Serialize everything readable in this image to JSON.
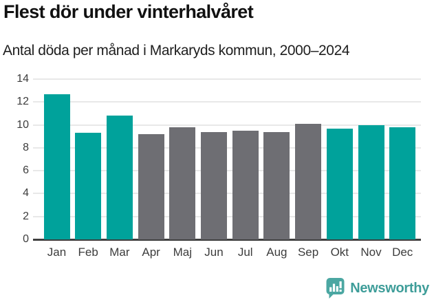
{
  "header": {
    "title": "Flest dör under vinterhalvåret",
    "subtitle": "Antal döda per månad i Markaryds kommun, 2000–2024"
  },
  "chart_data": {
    "type": "bar",
    "title": "Flest dör under vinterhalvåret",
    "subtitle": "Antal döda per månad i Markaryds kommun, 2000–2024",
    "categories": [
      "Jan",
      "Feb",
      "Mar",
      "Apr",
      "Maj",
      "Jun",
      "Jul",
      "Aug",
      "Sep",
      "Okt",
      "Nov",
      "Dec"
    ],
    "values": [
      12.7,
      9.3,
      10.8,
      9.2,
      9.8,
      9.4,
      9.5,
      9.4,
      10.1,
      9.7,
      10.0,
      9.8
    ],
    "bar_colors": [
      "#00a29b",
      "#00a29b",
      "#00a29b",
      "#6e6e73",
      "#6e6e73",
      "#6e6e73",
      "#6e6e73",
      "#6e6e73",
      "#6e6e73",
      "#00a29b",
      "#00a29b",
      "#00a29b"
    ],
    "palette": {
      "winter_teal": "#00a29b",
      "summer_gray": "#6e6e73"
    },
    "xlabel": "",
    "ylabel": "",
    "ylim": [
      0,
      14
    ],
    "yticks": [
      0,
      2,
      4,
      6,
      8,
      10,
      12,
      14
    ],
    "grid": true,
    "gridline_color": "#e8e8e8",
    "axis_color": "#3f3f3f",
    "legend": "none"
  },
  "footer": {
    "brand": "Newsworthy",
    "logo_icon": "bar-chart-speech-bubble-icon",
    "brand_color": "#3e9d99",
    "logo_bubble_color": "#4ba7a2"
  }
}
